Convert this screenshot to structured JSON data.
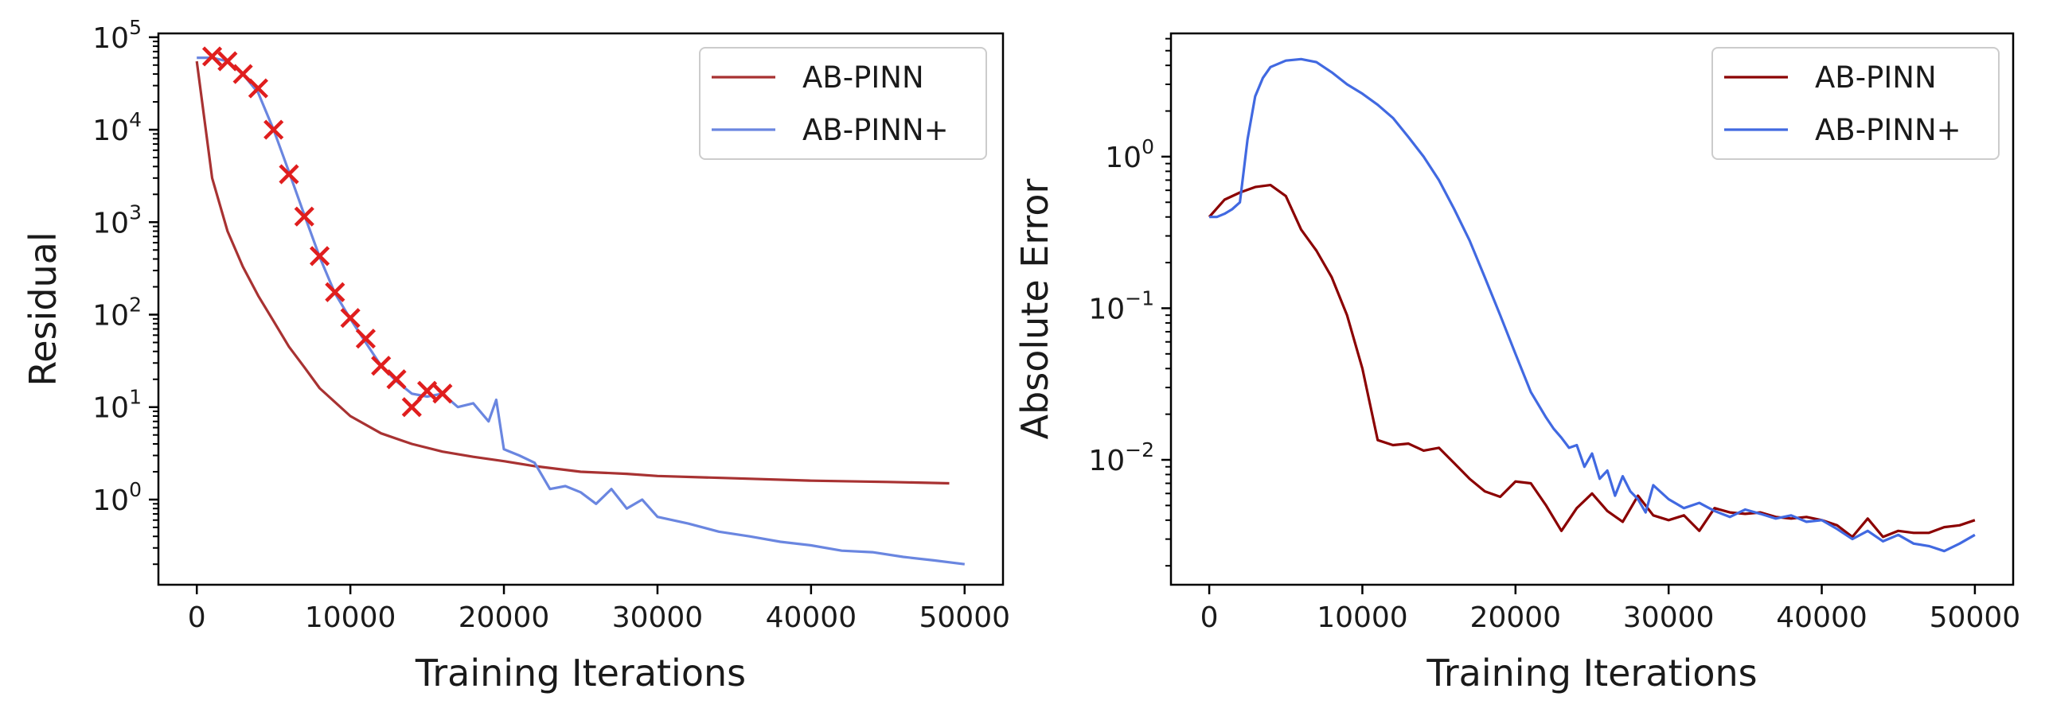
{
  "chart_data": [
    {
      "type": "line",
      "yscale": "log",
      "xlabel": "Training Iterations",
      "ylabel": "Residual",
      "xlim": [
        -2500,
        52500
      ],
      "ylim": [
        0.12,
        110000
      ],
      "xticks": [
        0,
        10000,
        20000,
        30000,
        40000,
        50000
      ],
      "xtick_labels": [
        "0",
        "10000",
        "20000",
        "30000",
        "40000",
        "50000"
      ],
      "ytick_exponents": [
        0,
        1,
        2,
        3,
        4,
        5
      ],
      "ytick_base": "10",
      "legend_position": "top-right",
      "series": [
        {
          "name": "AB-PINN",
          "color": "#a83232",
          "x": [
            0,
            1000,
            2000,
            3000,
            4000,
            5000,
            6000,
            7000,
            8000,
            10000,
            12000,
            14000,
            16000,
            18000,
            20000,
            22000,
            25000,
            28000,
            30000,
            35000,
            40000,
            45000,
            49000
          ],
          "y": [
            55000,
            3000,
            800,
            330,
            160,
            85,
            45,
            27,
            16,
            8,
            5.2,
            4,
            3.3,
            2.9,
            2.6,
            2.3,
            2.0,
            1.9,
            1.8,
            1.7,
            1.6,
            1.55,
            1.5
          ]
        },
        {
          "name": "AB-PINN+",
          "color": "#6a86e0",
          "x": [
            0,
            1000,
            2000,
            3000,
            4000,
            5000,
            6000,
            7000,
            8000,
            9000,
            10000,
            11000,
            12000,
            13000,
            14000,
            15000,
            16000,
            17000,
            18000,
            19000,
            19500,
            20000,
            21000,
            22000,
            23000,
            24000,
            25000,
            26000,
            27000,
            28000,
            29000,
            30000,
            32000,
            34000,
            36000,
            38000,
            40000,
            42000,
            44000,
            46000,
            48000,
            50000
          ],
          "y": [
            60000,
            60000,
            55000,
            40000,
            25000,
            10000,
            3500,
            1200,
            420,
            170,
            90,
            50,
            28,
            19,
            14,
            13,
            14,
            10,
            11,
            7,
            12,
            3.5,
            3.0,
            2.5,
            1.3,
            1.4,
            1.2,
            0.9,
            1.3,
            0.8,
            1.0,
            0.65,
            0.55,
            0.45,
            0.4,
            0.35,
            0.32,
            0.28,
            0.27,
            0.24,
            0.22,
            0.2
          ]
        }
      ],
      "markers": {
        "name": "markers",
        "color": "#e01e1e",
        "symbol": "x",
        "x": [
          1000,
          2000,
          3000,
          4000,
          5000,
          6000,
          7000,
          8000,
          9000,
          10000,
          11000,
          12000,
          13000,
          14000,
          15000,
          16000
        ],
        "y": [
          62000,
          55000,
          40000,
          28000,
          10000,
          3300,
          1150,
          430,
          175,
          92,
          55,
          28,
          20,
          10,
          15,
          14
        ]
      }
    },
    {
      "type": "line",
      "yscale": "log",
      "xlabel": "Training Iterations",
      "ylabel": "Absolute Error",
      "xlim": [
        -2500,
        52500
      ],
      "ylim": [
        0.0015,
        6.5
      ],
      "xticks": [
        0,
        10000,
        20000,
        30000,
        40000,
        50000
      ],
      "xtick_labels": [
        "0",
        "10000",
        "20000",
        "30000",
        "40000",
        "50000"
      ],
      "ytick_exponents": [
        0,
        -1,
        -2
      ],
      "ytick_base": "10",
      "legend_position": "top-right",
      "series": [
        {
          "name": "AB-PINN",
          "color": "#8b0000",
          "x": [
            0,
            1000,
            2000,
            3000,
            4000,
            5000,
            6000,
            7000,
            8000,
            9000,
            10000,
            11000,
            12000,
            13000,
            14000,
            15000,
            16000,
            17000,
            18000,
            19000,
            20000,
            21000,
            22000,
            23000,
            24000,
            25000,
            26000,
            27000,
            28000,
            29000,
            30000,
            31000,
            32000,
            33000,
            34000,
            35000,
            36000,
            37000,
            38000,
            39000,
            40000,
            41000,
            42000,
            43000,
            44000,
            45000,
            46000,
            47000,
            48000,
            49000,
            50000
          ],
          "y": [
            0.4,
            0.52,
            0.58,
            0.63,
            0.65,
            0.55,
            0.33,
            0.24,
            0.16,
            0.09,
            0.04,
            0.0135,
            0.0125,
            0.0128,
            0.0115,
            0.012,
            0.0095,
            0.0075,
            0.0062,
            0.0057,
            0.0072,
            0.007,
            0.005,
            0.0034,
            0.0048,
            0.006,
            0.0046,
            0.0039,
            0.0058,
            0.0043,
            0.004,
            0.0043,
            0.0034,
            0.0048,
            0.0045,
            0.0044,
            0.0045,
            0.0042,
            0.0041,
            0.0042,
            0.004,
            0.0037,
            0.0031,
            0.0041,
            0.0031,
            0.0034,
            0.0033,
            0.0033,
            0.0036,
            0.0037,
            0.004
          ]
        },
        {
          "name": "AB-PINN+",
          "color": "#4169e1",
          "x": [
            0,
            500,
            1000,
            1500,
            2000,
            2500,
            3000,
            3500,
            4000,
            5000,
            6000,
            7000,
            8000,
            9000,
            10000,
            11000,
            12000,
            13000,
            14000,
            15000,
            16000,
            17000,
            18000,
            19000,
            20000,
            21000,
            22000,
            22500,
            23000,
            23500,
            24000,
            24500,
            25000,
            25500,
            26000,
            26500,
            27000,
            27500,
            28000,
            28500,
            29000,
            30000,
            31000,
            32000,
            33000,
            34000,
            35000,
            36000,
            37000,
            38000,
            39000,
            40000,
            41000,
            42000,
            43000,
            44000,
            45000,
            46000,
            47000,
            48000,
            49000,
            50000
          ],
          "y": [
            0.4,
            0.4,
            0.42,
            0.45,
            0.5,
            1.3,
            2.5,
            3.3,
            3.9,
            4.3,
            4.4,
            4.2,
            3.6,
            3.0,
            2.6,
            2.2,
            1.8,
            1.35,
            1.0,
            0.7,
            0.45,
            0.28,
            0.16,
            0.09,
            0.05,
            0.028,
            0.019,
            0.016,
            0.014,
            0.012,
            0.0125,
            0.009,
            0.011,
            0.0075,
            0.0085,
            0.0058,
            0.0078,
            0.0062,
            0.0055,
            0.0045,
            0.0068,
            0.0055,
            0.0048,
            0.0052,
            0.0046,
            0.0042,
            0.0047,
            0.0044,
            0.0041,
            0.0043,
            0.0039,
            0.004,
            0.0035,
            0.003,
            0.0034,
            0.0029,
            0.0032,
            0.0028,
            0.0027,
            0.0025,
            0.0028,
            0.0032
          ]
        }
      ]
    }
  ]
}
